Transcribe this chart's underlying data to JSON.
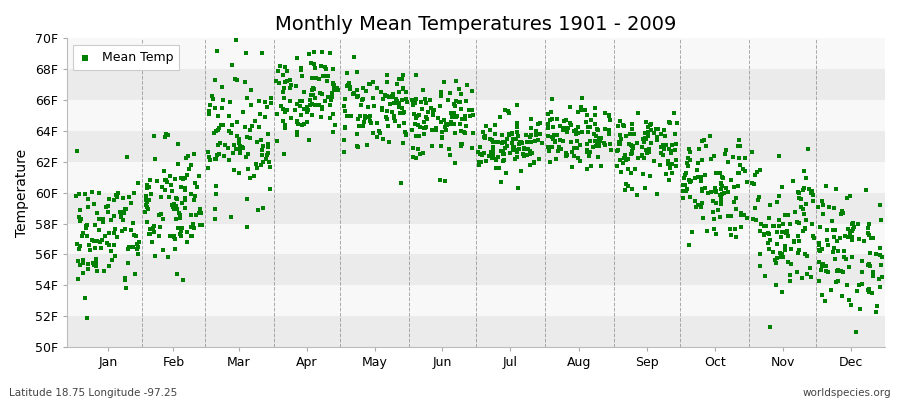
{
  "title": "Monthly Mean Temperatures 1901 - 2009",
  "ylabel": "Temperature",
  "xlabel_bottom_left": "Latitude 18.75 Longitude -97.25",
  "xlabel_bottom_right": "worldspecies.org",
  "legend_label": "Mean Temp",
  "dot_color": "#008000",
  "dot_size": 6,
  "ylim": [
    50,
    70
  ],
  "yticks": [
    50,
    52,
    54,
    56,
    58,
    60,
    62,
    64,
    66,
    68,
    70
  ],
  "ytick_labels": [
    "50F",
    "52F",
    "54F",
    "56F",
    "58F",
    "60F",
    "62F",
    "64F",
    "66F",
    "68F",
    "70F"
  ],
  "months": [
    "Jan",
    "Feb",
    "Mar",
    "Apr",
    "May",
    "Jun",
    "Jul",
    "Aug",
    "Sep",
    "Oct",
    "Nov",
    "Dec"
  ],
  "month_means": [
    57.2,
    59.0,
    63.8,
    66.5,
    65.5,
    64.5,
    63.2,
    63.5,
    62.8,
    60.5,
    57.8,
    56.2
  ],
  "month_stds": [
    2.0,
    2.2,
    2.2,
    1.5,
    1.4,
    1.3,
    1.0,
    1.0,
    1.3,
    1.8,
    2.3,
    2.0
  ],
  "num_years": 109,
  "bg_color_light": "#ebebeb",
  "bg_color_white": "#f8f8f8",
  "grid_color": "#888888",
  "title_fontsize": 14,
  "axis_fontsize": 10,
  "tick_fontsize": 9,
  "fig_width": 9.0,
  "fig_height": 4.0,
  "fig_dpi": 100
}
